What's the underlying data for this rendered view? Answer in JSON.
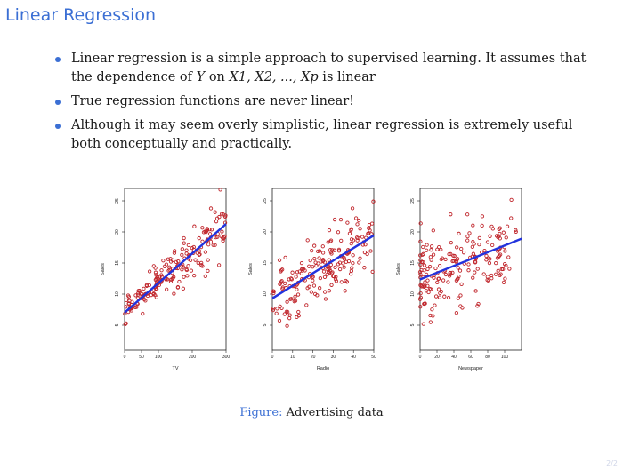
{
  "slide": {
    "title": "Linear Regression",
    "bullets": [
      {
        "pre": "Linear regression is a simple approach to supervised learning. It assumes that the dependence of ",
        "var": "Y",
        "mid": " on ",
        "vars": "X1, X2, ..., Xp",
        "post": " is linear"
      },
      {
        "text": "True regression functions are never linear!"
      },
      {
        "text": "Although it may seem overly simplistic, linear regression is extremely useful both conceptually and practically."
      }
    ],
    "caption_label": "Figure:",
    "caption_text": "Advertising data",
    "page_number": "2/2"
  },
  "colors": {
    "accent": "#3b6fd4",
    "points": "#c0262c",
    "fit": "#2233dd"
  },
  "chart_data": [
    {
      "type": "scatter",
      "xlabel": "TV",
      "ylabel": "Sales",
      "xlim": [
        0,
        300
      ],
      "ylim": [
        1,
        27
      ],
      "xticks": [
        0,
        50,
        100,
        200,
        300
      ],
      "yticks": [
        5,
        10,
        15,
        20,
        25
      ],
      "fit": {
        "intercept": 7.03,
        "slope": 0.0475
      },
      "n_points": 200,
      "noise": 3.2,
      "seed": 11
    },
    {
      "type": "scatter",
      "xlabel": "Radio",
      "ylabel": "Sales",
      "xlim": [
        0,
        50
      ],
      "ylim": [
        1,
        27
      ],
      "xticks": [
        0,
        10,
        20,
        30,
        40,
        50
      ],
      "yticks": [
        5,
        10,
        15,
        20,
        25
      ],
      "fit": {
        "intercept": 9.31,
        "slope": 0.2025
      },
      "n_points": 200,
      "noise": 4.2,
      "seed": 23
    },
    {
      "type": "scatter",
      "xlabel": "Newspaper",
      "ylabel": "Sales",
      "xlim": [
        0,
        120
      ],
      "ylim": [
        1,
        27
      ],
      "xticks": [
        0,
        20,
        40,
        60,
        80,
        100
      ],
      "yticks": [
        5,
        10,
        15,
        20,
        25
      ],
      "fit": {
        "intercept": 12.35,
        "slope": 0.0547
      },
      "n_points": 200,
      "noise": 5.0,
      "seed": 37
    }
  ]
}
